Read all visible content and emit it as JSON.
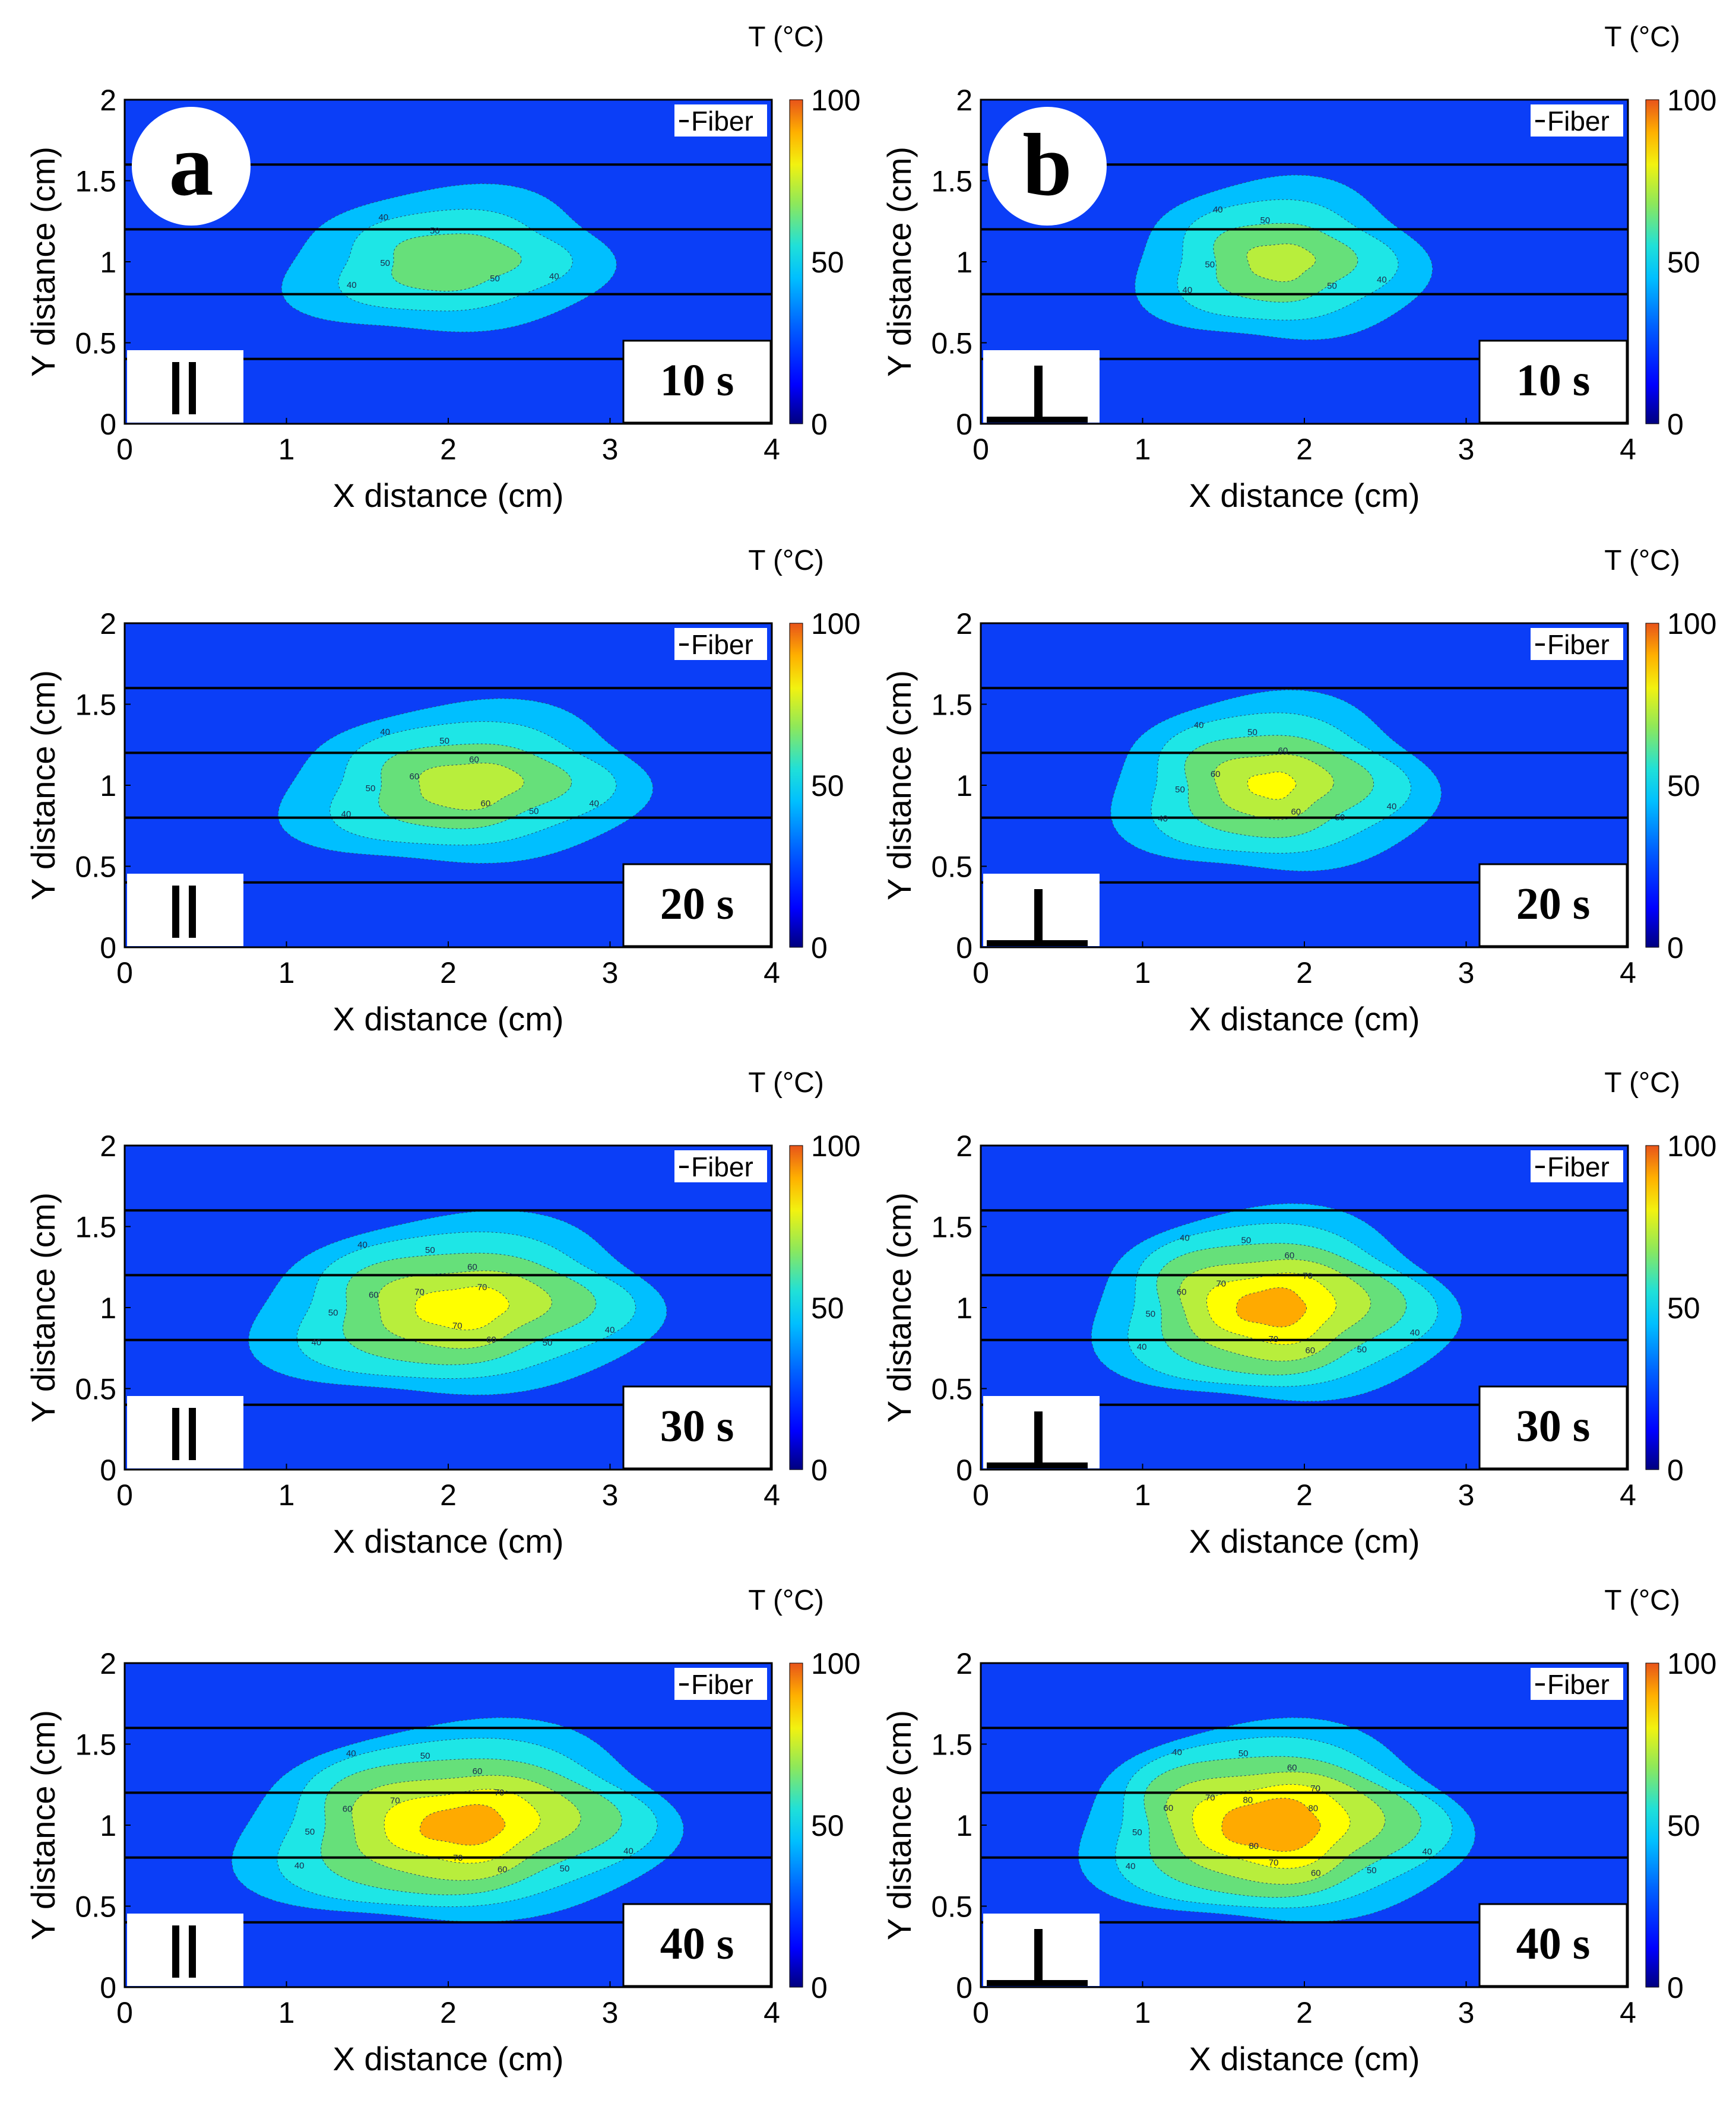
{
  "chart_data": {
    "type": "heatmap",
    "subtype": "filled-contour",
    "x_axis_label": "X distance (cm)",
    "y_axis_label": "Y distance (cm)",
    "x_ticks": [
      "0",
      "1",
      "2",
      "3",
      "4"
    ],
    "y_ticks": [
      "0",
      "0.5",
      "1",
      "1.5",
      "2"
    ],
    "xlim": [
      0,
      4
    ],
    "ylim": [
      0,
      2
    ],
    "colorbar": {
      "title": "T (°C)",
      "ticks": [
        "0",
        "50",
        "100"
      ],
      "range": [
        0,
        100
      ],
      "colormap": [
        "#00007f",
        "#0000ff",
        "#0033ff",
        "#0080ff",
        "#00bfff",
        "#1ee6e6",
        "#66e07a",
        "#b8ee3c",
        "#ffff00",
        "#ffaa00",
        "#f05a00"
      ]
    },
    "fiber_legend": "Fiber",
    "fiber_y": [
      0.4,
      0.8,
      1.2,
      1.6
    ],
    "contour_levels": [
      40,
      50,
      60,
      70,
      80
    ],
    "panels": [
      {
        "letter": "a",
        "orientation": "parallel",
        "orientation_glyph": "||",
        "time": "10 s",
        "center": [
          2.0,
          1.0
        ],
        "rx": 1.0,
        "ry": 0.45,
        "skew": 0.32,
        "peak": 57,
        "contour_labels": [
          "40",
          "50"
        ]
      },
      {
        "letter": "b",
        "orientation": "perpendicular",
        "orientation_glyph": "⊥",
        "time": "10 s",
        "center": [
          1.85,
          1.0
        ],
        "rx": 0.9,
        "ry": 0.5,
        "skew": 0,
        "peak": 63,
        "contour_labels": [
          "40",
          "50"
        ]
      },
      {
        "letter": "",
        "orientation": "parallel",
        "orientation_glyph": "||",
        "time": "20 s",
        "center": [
          2.1,
          1.0
        ],
        "rx": 1.12,
        "ry": 0.5,
        "skew": 0.3,
        "peak": 66,
        "contour_labels": [
          "40",
          "50",
          "60"
        ]
      },
      {
        "letter": "",
        "orientation": "perpendicular",
        "orientation_glyph": "⊥",
        "time": "20 s",
        "center": [
          1.8,
          1.0
        ],
        "rx": 1.0,
        "ry": 0.55,
        "skew": 0,
        "peak": 71,
        "contour_labels": [
          "40",
          "50",
          "60"
        ]
      },
      {
        "letter": "",
        "orientation": "parallel",
        "orientation_glyph": "||",
        "time": "30 s",
        "center": [
          2.05,
          1.0
        ],
        "rx": 1.25,
        "ry": 0.56,
        "skew": 0.3,
        "peak": 76,
        "contour_labels": [
          "40",
          "50",
          "60",
          "70"
        ]
      },
      {
        "letter": "",
        "orientation": "perpendicular",
        "orientation_glyph": "⊥",
        "time": "30 s",
        "center": [
          1.8,
          1.0
        ],
        "rx": 1.12,
        "ry": 0.6,
        "skew": 0,
        "peak": 86,
        "contour_labels": [
          "40",
          "50",
          "60",
          "70"
        ]
      },
      {
        "letter": "",
        "orientation": "parallel",
        "orientation_glyph": "||",
        "time": "40 s",
        "center": [
          2.05,
          1.0
        ],
        "rx": 1.35,
        "ry": 0.62,
        "skew": 0.3,
        "peak": 86,
        "contour_labels": [
          "40",
          "50",
          "60",
          "70"
        ]
      },
      {
        "letter": "",
        "orientation": "perpendicular",
        "orientation_glyph": "⊥",
        "time": "40 s",
        "center": [
          1.8,
          1.0
        ],
        "rx": 1.2,
        "ry": 0.62,
        "skew": 0,
        "peak": 91,
        "contour_labels": [
          "40",
          "50",
          "60",
          "70",
          "80"
        ]
      }
    ]
  }
}
